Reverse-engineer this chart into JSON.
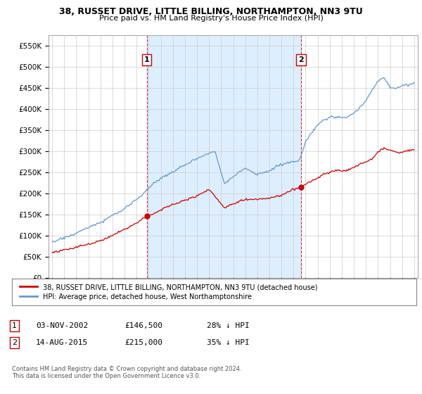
{
  "title": "38, RUSSET DRIVE, LITTLE BILLING, NORTHAMPTON, NN3 9TU",
  "subtitle": "Price paid vs. HM Land Registry's House Price Index (HPI)",
  "ylabel_ticks": [
    "£0",
    "£50K",
    "£100K",
    "£150K",
    "£200K",
    "£250K",
    "£300K",
    "£350K",
    "£400K",
    "£450K",
    "£500K",
    "£550K"
  ],
  "ytick_values": [
    0,
    50000,
    100000,
    150000,
    200000,
    250000,
    300000,
    350000,
    400000,
    450000,
    500000,
    550000
  ],
  "ylim": [
    0,
    575000
  ],
  "xlim_start": 1994.7,
  "xlim_end": 2025.3,
  "sale1_x": 2002.84,
  "sale1_y": 146500,
  "sale2_x": 2015.62,
  "sale2_y": 215000,
  "vline1_x": 2002.84,
  "vline2_x": 2015.62,
  "legend_line1": "38, RUSSET DRIVE, LITTLE BILLING, NORTHAMPTON, NN3 9TU (detached house)",
  "legend_line2": "HPI: Average price, detached house, West Northamptonshire",
  "table_row1": [
    "1",
    "03-NOV-2002",
    "£146,500",
    "28% ↓ HPI"
  ],
  "table_row2": [
    "2",
    "14-AUG-2015",
    "£215,000",
    "35% ↓ HPI"
  ],
  "footer": "Contains HM Land Registry data © Crown copyright and database right 2024.\nThis data is licensed under the Open Government Licence v3.0.",
  "red_color": "#cc0000",
  "blue_color": "#6699cc",
  "shade_color": "#ddeeff",
  "grid_color": "#cccccc",
  "background_color": "#ffffff"
}
